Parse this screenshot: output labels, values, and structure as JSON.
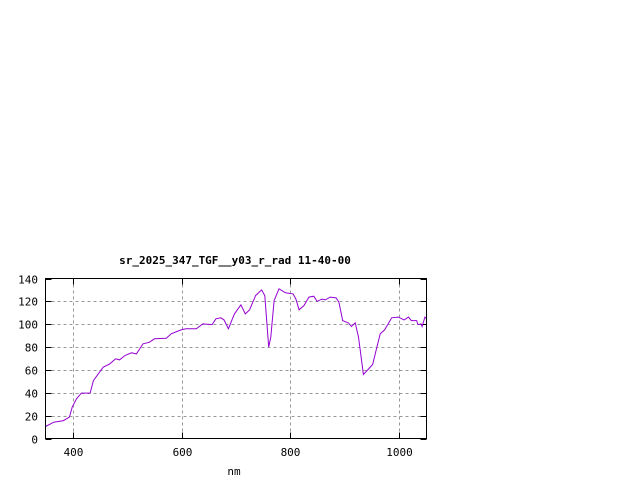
{
  "chart_data": {
    "type": "line",
    "title": "sr_2025_347_TGF__y03_r_rad 11-40-00",
    "xlabel": "nm",
    "ylabel": "",
    "xlim": [
      350,
      1050
    ],
    "ylim": [
      0,
      140
    ],
    "xticks": [
      400,
      600,
      800,
      1000
    ],
    "yticks": [
      0,
      20,
      40,
      60,
      80,
      100,
      120,
      140
    ],
    "grid": true,
    "line_color": "#9400d3",
    "series": [
      {
        "x": [
          350,
          365,
          383,
          394,
          399,
          407,
          416,
          432,
          438,
          456,
          468,
          479,
          486,
          496,
          508,
          517,
          529,
          541,
          550,
          572,
          581,
          599,
          608,
          627,
          639,
          656,
          663,
          672,
          678,
          686,
          697,
          709,
          717,
          725,
          736,
          747,
          753,
          760,
          764,
          770,
          779,
          791,
          805,
          810,
          816,
          825,
          834,
          843,
          849,
          858,
          864,
          873,
          884,
          889,
          896,
          907,
          912,
          919,
          925,
          934,
          942,
          951,
          965,
          973,
          986,
          998,
          1009,
          1017,
          1022,
          1032,
          1034,
          1040,
          1042,
          1047,
          1050
        ],
        "y": [
          10.5,
          14.3,
          15.7,
          18.7,
          27.4,
          34.7,
          39.7,
          39.7,
          50.7,
          62.4,
          65.3,
          69.7,
          68.8,
          72.6,
          75,
          74,
          82.8,
          84.3,
          87.2,
          87.8,
          91.6,
          95,
          96,
          96,
          100.3,
          99.7,
          104.7,
          105.6,
          103.8,
          96,
          109,
          117,
          109,
          112.6,
          125,
          130,
          125,
          80,
          88.7,
          120.7,
          131,
          127.5,
          126.5,
          122,
          112.6,
          116.4,
          123.7,
          124.5,
          120,
          122,
          121.3,
          123.7,
          123,
          119.3,
          103.2,
          101,
          98,
          101.2,
          88.7,
          56,
          60,
          64.7,
          91.6,
          95,
          105.6,
          106.2,
          103.8,
          106.2,
          103.2,
          103.2,
          99.7,
          100.3,
          98,
          106.2,
          105
        ]
      }
    ]
  }
}
